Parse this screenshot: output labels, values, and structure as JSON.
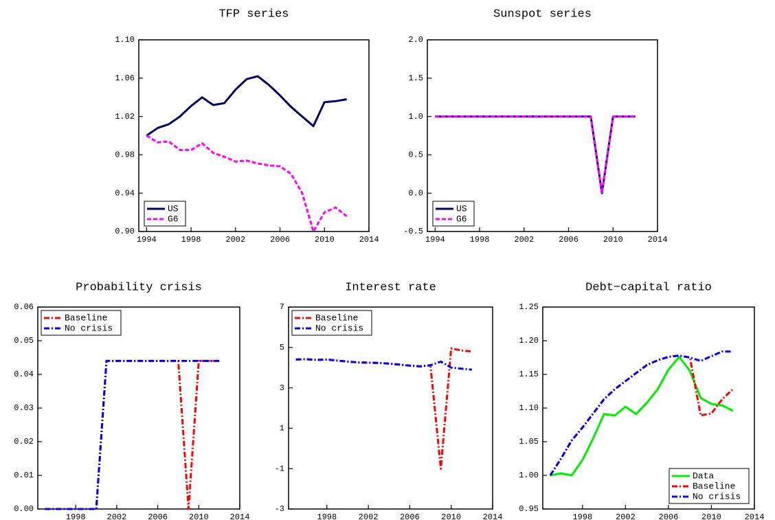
{
  "chart_data": [
    {
      "type": "line",
      "title": "TFP series",
      "x": [
        1994,
        1995,
        1996,
        1997,
        1998,
        1999,
        2000,
        2001,
        2002,
        2003,
        2004,
        2005,
        2006,
        2007,
        2008,
        2009,
        2010,
        2011,
        2012
      ],
      "series": [
        {
          "name": "US",
          "color": "#000066",
          "dash": "solid",
          "values": [
            1.0,
            1.008,
            1.012,
            1.02,
            1.031,
            1.04,
            1.032,
            1.034,
            1.048,
            1.059,
            1.062,
            1.053,
            1.042,
            1.03,
            1.02,
            1.01,
            1.035,
            1.036,
            1.038
          ]
        },
        {
          "name": "G6",
          "color": "#ff00ff",
          "dash": "dashed",
          "values": [
            1.0,
            0.993,
            0.994,
            0.985,
            0.985,
            0.992,
            0.982,
            0.978,
            0.973,
            0.974,
            0.971,
            0.969,
            0.968,
            0.96,
            0.94,
            0.9,
            0.92,
            0.925,
            0.916
          ]
        }
      ],
      "xlim": [
        1993.3,
        2014
      ],
      "xticks": [
        1994,
        1998,
        2002,
        2006,
        2010,
        2014
      ],
      "ylim": [
        0.9,
        1.1
      ],
      "yticks": [
        {
          "value": 0.9,
          "label": "0.90"
        },
        0.94,
        0.98,
        1.02,
        1.06,
        {
          "value": 1.1,
          "label": "1.10"
        }
      ],
      "legend": "lower left"
    },
    {
      "type": "line",
      "title": "Sunspot series",
      "x": [
        1994,
        1995,
        1996,
        1997,
        1998,
        1999,
        2000,
        2001,
        2002,
        2003,
        2004,
        2005,
        2006,
        2007,
        2008,
        2009,
        2010,
        2011,
        2012
      ],
      "series": [
        {
          "name": "US",
          "color": "#000066",
          "dash": "solid",
          "values": [
            1,
            1,
            1,
            1,
            1,
            1,
            1,
            1,
            1,
            1,
            1,
            1,
            1,
            1,
            1,
            0,
            1,
            1,
            1
          ]
        },
        {
          "name": "G6",
          "color": "#ff00ff",
          "dash": "dashed",
          "values": [
            1,
            1,
            1,
            1,
            1,
            1,
            1,
            1,
            1,
            1,
            1,
            1,
            1,
            1,
            1,
            0,
            1,
            1,
            1
          ]
        }
      ],
      "xlim": [
        1993.3,
        2014
      ],
      "xticks": [
        1994,
        1998,
        2002,
        2006,
        2010,
        2014
      ],
      "ylim": [
        -0.5,
        2.0
      ],
      "yticks": [
        -0.5,
        {
          "value": 0,
          "label": "0.0"
        },
        0.5,
        {
          "value": 1,
          "label": "1.0"
        },
        1.5,
        {
          "value": 2,
          "label": "2.0"
        }
      ],
      "legend": "lower left"
    },
    {
      "type": "line",
      "title": "Probability crisis",
      "x": [
        1995,
        1996,
        1997,
        1998,
        1999,
        2000,
        2001,
        2002,
        2003,
        2004,
        2005,
        2006,
        2007,
        2008,
        2009,
        2010,
        2011,
        2012
      ],
      "series": [
        {
          "name": "Baseline",
          "color": "#ff0000",
          "dash": "dashdot",
          "values": [
            0,
            0,
            0,
            0,
            0,
            0,
            0.044,
            0.044,
            0.044,
            0.044,
            0.044,
            0.044,
            0.044,
            0.044,
            0,
            0.044,
            0.044,
            0.044
          ]
        },
        {
          "name": "No crisis",
          "color": "#0000ff",
          "dash": "dashdot",
          "values": [
            0,
            0,
            0,
            0,
            0,
            0,
            0.044,
            0.044,
            0.044,
            0.044,
            0.044,
            0.044,
            0.044,
            0.044,
            0.044,
            0.044,
            0.044,
            0.044
          ]
        }
      ],
      "xlim": [
        1994.3,
        2014
      ],
      "xticks": [
        1998,
        2002,
        2006,
        2010,
        2014
      ],
      "ylim": [
        0,
        0.06
      ],
      "yticks": [
        {
          "value": 0,
          "label": "0.00"
        },
        0.01,
        0.02,
        0.03,
        0.04,
        0.05,
        0.06
      ],
      "legend": "upper left"
    },
    {
      "type": "line",
      "title": "Interest rate",
      "x": [
        1995,
        1996,
        1997,
        1998,
        1999,
        2000,
        2001,
        2002,
        2003,
        2004,
        2005,
        2006,
        2007,
        2008,
        2009,
        2010,
        2011,
        2012
      ],
      "series": [
        {
          "name": "Baseline",
          "color": "#ff0000",
          "dash": "dashdot",
          "values": [
            4.4,
            4.42,
            4.38,
            4.4,
            4.35,
            4.3,
            4.26,
            4.25,
            4.23,
            4.2,
            4.15,
            4.1,
            4.06,
            4.12,
            -1.0,
            4.95,
            4.85,
            4.8
          ]
        },
        {
          "name": "No crisis",
          "color": "#0000ff",
          "dash": "dashdot",
          "values": [
            4.4,
            4.42,
            4.38,
            4.4,
            4.35,
            4.3,
            4.26,
            4.25,
            4.23,
            4.2,
            4.15,
            4.1,
            4.06,
            4.12,
            4.3,
            4.0,
            3.95,
            3.9
          ]
        }
      ],
      "xlim": [
        1994.3,
        2014
      ],
      "xticks": [
        1998,
        2002,
        2006,
        2010,
        2014
      ],
      "ylim": [
        -3,
        7
      ],
      "yticks": [
        -3,
        -1,
        1,
        3,
        5,
        7
      ],
      "legend": "upper left"
    },
    {
      "type": "line",
      "title": "Debt−capital ratio",
      "x": [
        1995,
        1996,
        1997,
        1998,
        1999,
        2000,
        2001,
        2002,
        2003,
        2004,
        2005,
        2006,
        2007,
        2008,
        2009,
        2010,
        2011,
        2012
      ],
      "series": [
        {
          "name": "Data",
          "color": "#00ee00",
          "dash": "solid",
          "values": [
            1.0,
            1.003,
            1.0,
            1.023,
            1.055,
            1.091,
            1.089,
            1.102,
            1.091,
            1.108,
            1.128,
            1.157,
            1.176,
            1.155,
            1.115,
            1.106,
            1.104,
            1.096
          ]
        },
        {
          "name": "Baseline",
          "color": "#ff0000",
          "dash": "dashdot",
          "values": [
            1.0,
            1.025,
            1.052,
            1.071,
            1.092,
            1.113,
            1.128,
            1.14,
            1.152,
            1.164,
            1.171,
            1.176,
            1.178,
            1.175,
            1.089,
            1.092,
            1.113,
            1.128
          ]
        },
        {
          "name": "No crisis",
          "color": "#0000ff",
          "dash": "dashdot",
          "values": [
            1.0,
            1.025,
            1.052,
            1.071,
            1.092,
            1.113,
            1.128,
            1.14,
            1.152,
            1.164,
            1.171,
            1.176,
            1.178,
            1.175,
            1.17,
            1.177,
            1.184,
            1.184
          ]
        }
      ],
      "xlim": [
        1994.3,
        2014
      ],
      "xticks": [
        1998,
        2002,
        2006,
        2010,
        2014
      ],
      "ylim": [
        0.95,
        1.25
      ],
      "yticks": [
        0.95,
        {
          "value": 1.0,
          "label": "1.00"
        },
        1.05,
        {
          "value": 1.1,
          "label": "1.10"
        },
        1.15,
        {
          "value": 1.2,
          "label": "1.20"
        },
        1.25
      ],
      "legend": "lower right"
    }
  ]
}
